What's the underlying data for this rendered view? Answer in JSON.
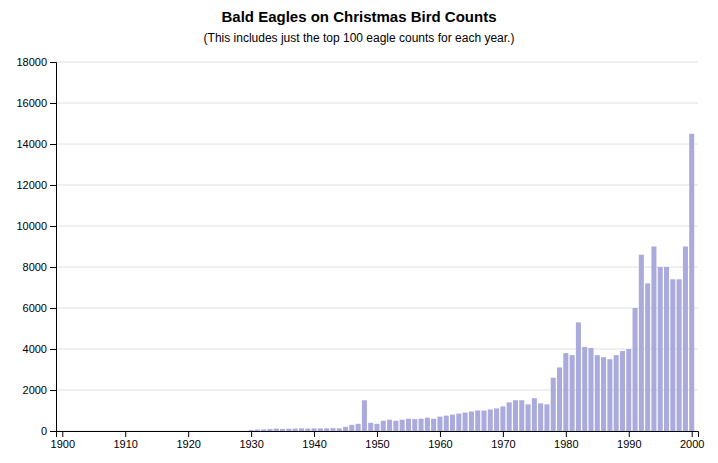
{
  "chart_data": {
    "type": "bar",
    "title": "Bald Eagles on Christmas Bird Counts",
    "subtitle": "(This includes just the top 100 eagle counts for each year.)",
    "x": [
      1900,
      1901,
      1902,
      1903,
      1904,
      1905,
      1906,
      1907,
      1908,
      1909,
      1910,
      1911,
      1912,
      1913,
      1914,
      1915,
      1916,
      1917,
      1918,
      1919,
      1920,
      1921,
      1922,
      1923,
      1924,
      1925,
      1926,
      1927,
      1928,
      1929,
      1930,
      1931,
      1932,
      1933,
      1934,
      1935,
      1936,
      1937,
      1938,
      1939,
      1940,
      1941,
      1942,
      1943,
      1944,
      1945,
      1946,
      1947,
      1948,
      1949,
      1950,
      1951,
      1952,
      1953,
      1954,
      1955,
      1956,
      1957,
      1958,
      1959,
      1960,
      1961,
      1962,
      1963,
      1964,
      1965,
      1966,
      1967,
      1968,
      1969,
      1970,
      1971,
      1972,
      1973,
      1974,
      1975,
      1976,
      1977,
      1978,
      1979,
      1980,
      1981,
      1982,
      1983,
      1984,
      1985,
      1986,
      1987,
      1988,
      1989,
      1990,
      1991,
      1992,
      1993,
      1994,
      1995,
      1996,
      1997,
      1998,
      1999,
      2000
    ],
    "values": [
      0,
      0,
      0,
      0,
      0,
      0,
      0,
      0,
      0,
      0,
      0,
      0,
      0,
      0,
      0,
      0,
      0,
      0,
      0,
      0,
      0,
      0,
      0,
      0,
      0,
      0,
      0,
      0,
      0,
      0,
      50,
      70,
      80,
      100,
      120,
      100,
      110,
      120,
      130,
      120,
      130,
      130,
      130,
      140,
      130,
      200,
      300,
      350,
      1500,
      400,
      350,
      500,
      550,
      500,
      550,
      600,
      580,
      600,
      650,
      600,
      700,
      750,
      800,
      850,
      900,
      950,
      1000,
      1000,
      1050,
      1100,
      1200,
      1400,
      1500,
      1500,
      1300,
      1600,
      1350,
      1300,
      2600,
      3100,
      3800,
      3700,
      5300,
      4100,
      4050,
      3700,
      3600,
      3500,
      3700,
      3900,
      4000,
      6000,
      8600,
      7200,
      9000,
      8000,
      8000,
      7400,
      7400,
      9000,
      14500
    ],
    "color": "#aaaadd",
    "xlim": [
      1899,
      2001
    ],
    "xticks": [
      1900,
      1910,
      1920,
      1930,
      1940,
      1950,
      1960,
      1970,
      1980,
      1990,
      2000
    ],
    "ylim": [
      0,
      18000
    ],
    "yticks": [
      0,
      2000,
      4000,
      6000,
      8000,
      10000,
      12000,
      14000,
      16000,
      18000
    ],
    "grid": true
  }
}
